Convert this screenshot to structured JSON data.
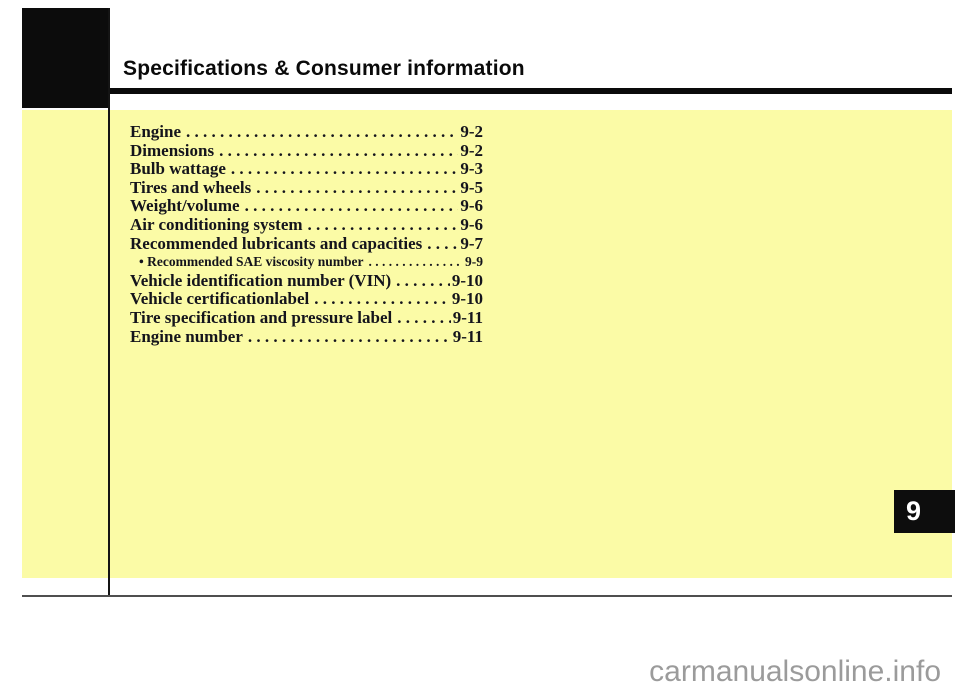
{
  "page": {
    "chapter_number": "9",
    "title": "Specifications & Consumer information",
    "watermark": "carmanualsonline.info",
    "colors": {
      "highlight_background": "#FBFBA6",
      "title_text": "#0A0A0A",
      "toc_text": "#14141C",
      "chapter_badge_background": "#0D0D0D",
      "chapter_badge_text": "#FFFFFF",
      "bottom_rule": "#4F4F4F",
      "watermark_text": "#9B9B9B"
    }
  },
  "toc": {
    "dot_leader": ". . . . . . . . . . . . . . . . . . . . . . . . . . . . . . . . . . . . . . . . . . . . . . . . . . . . . . . . . . . . . . . . . . . . . . . .",
    "items": [
      {
        "label": "Engine",
        "page": "9-2"
      },
      {
        "label": "Dimensions",
        "page": "9-2"
      },
      {
        "label": "Bulb wattage",
        "page": "9-3"
      },
      {
        "label": "Tires and wheels",
        "page": "9-5"
      },
      {
        "label": "Weight/volume",
        "page": "9-6"
      },
      {
        "label": "Air conditioning system",
        "page": "9-6"
      },
      {
        "label": "Recommended lubricants and capacities",
        "page": "9-7"
      },
      {
        "label": "• Recommended SAE viscosity number",
        "page": "9-9"
      },
      {
        "label": "Vehicle identification number (VIN)",
        "page": "9-10"
      },
      {
        "label": "Vehicle certificationlabel",
        "page": "9-10"
      },
      {
        "label": "Tire specification and pressure label",
        "page": "9-11"
      },
      {
        "label": "Engine number",
        "page": "9-11"
      }
    ]
  }
}
